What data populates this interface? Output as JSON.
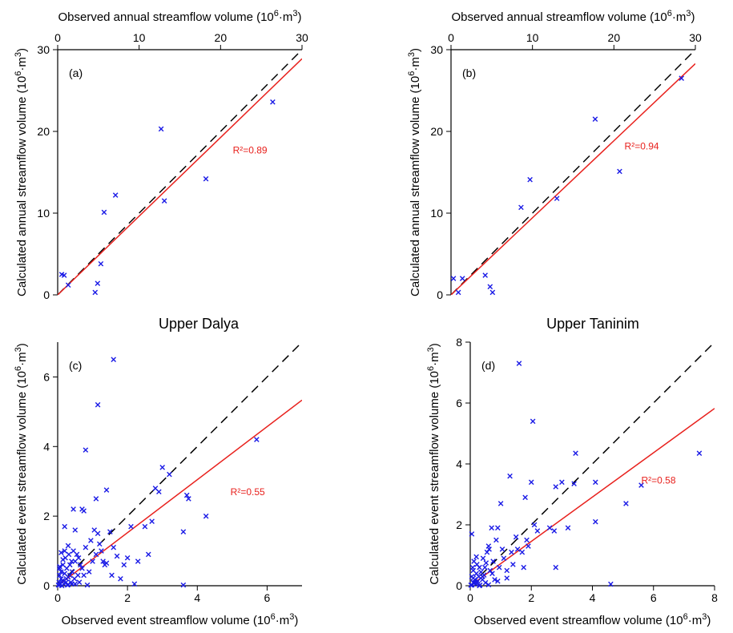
{
  "headings": {
    "left": "Upper Dalya",
    "right": "Upper Taninim"
  },
  "colors": {
    "points": "#1a1ae6",
    "fit_line": "#e8211d",
    "one_to_one": "#000000"
  },
  "chart_data": [
    {
      "type": "scatter",
      "panel_label": "(a)",
      "xlabel": "Observed annual streamflow volume (10",
      "xlabel_sup": "6",
      "xlabel_end": "·m",
      "xlabel_sup2": "3",
      "xlabel_close": ")",
      "ylabel": "Calculated annual streamflow volume (10",
      "ylabel_sup": "6",
      "ylabel_end": "·m",
      "ylabel_sup2": "3",
      "ylabel_close": ")",
      "x_axis_position": "top",
      "xlim": [
        0,
        30
      ],
      "ylim": [
        0,
        30
      ],
      "xticks": [
        0,
        10,
        20,
        30
      ],
      "yticks": [
        0,
        10,
        20,
        30
      ],
      "r2_label": "R²=0.89",
      "r2_at": [
        21.5,
        17.3
      ],
      "fit_slope": 0.963,
      "points": [
        [
          0.5,
          2.5
        ],
        [
          0.8,
          2.4
        ],
        [
          1.3,
          1.2
        ],
        [
          4.6,
          0.3
        ],
        [
          4.9,
          1.4
        ],
        [
          5.3,
          3.8
        ],
        [
          5.7,
          10.1
        ],
        [
          7.1,
          12.2
        ],
        [
          12.7,
          20.3
        ],
        [
          13.1,
          11.5
        ],
        [
          18.2,
          14.2
        ],
        [
          26.4,
          23.6
        ]
      ]
    },
    {
      "type": "scatter",
      "panel_label": "(b)",
      "xlabel": "Observed annual streamflow volume (10",
      "xlabel_sup": "6",
      "xlabel_end": "·m",
      "xlabel_sup2": "3",
      "xlabel_close": ")",
      "ylabel": "Calculated annual streamflow volume (10",
      "ylabel_sup": "6",
      "ylabel_end": "·m",
      "ylabel_sup2": "3",
      "ylabel_close": ")",
      "x_axis_position": "top",
      "xlim": [
        0,
        30
      ],
      "ylim": [
        0,
        30
      ],
      "xticks": [
        0,
        10,
        20,
        30
      ],
      "yticks": [
        0,
        10,
        20,
        30
      ],
      "r2_label": "R²=0.94",
      "r2_at": [
        21.3,
        17.8
      ],
      "fit_slope": 0.943,
      "points": [
        [
          0.3,
          2.0
        ],
        [
          0.9,
          0.3
        ],
        [
          1.4,
          2.0
        ],
        [
          4.2,
          2.4
        ],
        [
          4.8,
          1.0
        ],
        [
          5.1,
          0.3
        ],
        [
          8.6,
          10.7
        ],
        [
          9.7,
          14.1
        ],
        [
          13.0,
          11.8
        ],
        [
          17.7,
          21.5
        ],
        [
          20.7,
          15.1
        ],
        [
          28.3,
          26.5
        ]
      ]
    },
    {
      "type": "scatter",
      "panel_label": "(c)",
      "xlabel": "Observed event streamflow volume (10",
      "xlabel_sup": "6",
      "xlabel_end": "·m",
      "xlabel_sup2": "3",
      "xlabel_close": ")",
      "ylabel": "Calculated event streamflow volume (10",
      "ylabel_sup": "6",
      "ylabel_end": "·m",
      "ylabel_sup2": "3",
      "ylabel_close": ")",
      "x_axis_position": "bottom",
      "xlim": [
        0,
        7
      ],
      "ylim": [
        0,
        7
      ],
      "xticks": [
        0,
        2,
        4,
        6
      ],
      "yticks": [
        0,
        2,
        4,
        6
      ],
      "r2_label": "R²=0.55",
      "r2_at": [
        4.95,
        2.6
      ],
      "fit_slope": 0.762,
      "points": [
        [
          0.02,
          0.02
        ],
        [
          0.04,
          0.1
        ],
        [
          0.05,
          0.3
        ],
        [
          0.06,
          0.55
        ],
        [
          0.08,
          0.05
        ],
        [
          0.1,
          0.2
        ],
        [
          0.1,
          0.4
        ],
        [
          0.12,
          0.0
        ],
        [
          0.14,
          0.15
        ],
        [
          0.15,
          0.6
        ],
        [
          0.18,
          0.05
        ],
        [
          0.2,
          0.35
        ],
        [
          0.22,
          0.8
        ],
        [
          0.24,
          0.1
        ],
        [
          0.26,
          0.5
        ],
        [
          0.28,
          0.02
        ],
        [
          0.3,
          0.25
        ],
        [
          0.32,
          0.9
        ],
        [
          0.35,
          0.6
        ],
        [
          0.38,
          0.1
        ],
        [
          0.4,
          0.05
        ],
        [
          0.42,
          0.4
        ],
        [
          0.45,
          1.0
        ],
        [
          0.48,
          0.2
        ],
        [
          0.5,
          0.7
        ],
        [
          0.55,
          0.9
        ],
        [
          0.58,
          0.3
        ],
        [
          0.6,
          0.8
        ],
        [
          0.62,
          0.1
        ],
        [
          0.1,
          0.95
        ],
        [
          0.2,
          1.0
        ],
        [
          0.3,
          1.15
        ],
        [
          0.15,
          0.75
        ],
        [
          0.05,
          0.5
        ],
        [
          0.25,
          0.2
        ],
        [
          0.35,
          0.3
        ],
        [
          0.4,
          0.7
        ],
        [
          0.65,
          0.6
        ],
        [
          0.7,
          0.5
        ],
        [
          0.75,
          0.3
        ],
        [
          0.8,
          1.1
        ],
        [
          0.9,
          0.4
        ],
        [
          0.95,
          1.3
        ],
        [
          1.0,
          0.7
        ],
        [
          1.05,
          1.6
        ],
        [
          1.1,
          0.9
        ],
        [
          1.15,
          1.5
        ],
        [
          1.2,
          1.2
        ],
        [
          1.25,
          1.0
        ],
        [
          1.3,
          0.7
        ],
        [
          1.35,
          0.6
        ],
        [
          1.4,
          0.65
        ],
        [
          1.5,
          1.55
        ],
        [
          1.55,
          0.3
        ],
        [
          1.6,
          1.1
        ],
        [
          1.7,
          0.85
        ],
        [
          1.8,
          0.2
        ],
        [
          1.9,
          0.6
        ],
        [
          2.0,
          0.8
        ],
        [
          2.1,
          1.7
        ],
        [
          2.2,
          0.05
        ],
        [
          2.3,
          0.7
        ],
        [
          2.5,
          1.7
        ],
        [
          2.6,
          0.9
        ],
        [
          2.7,
          1.85
        ],
        [
          2.8,
          2.8
        ],
        [
          2.9,
          2.7
        ],
        [
          3.0,
          3.4
        ],
        [
          3.2,
          3.2
        ],
        [
          3.6,
          1.55
        ],
        [
          3.7,
          2.6
        ],
        [
          3.75,
          2.5
        ],
        [
          4.25,
          2.0
        ],
        [
          5.7,
          4.2
        ],
        [
          0.2,
          1.7
        ],
        [
          0.45,
          2.2
        ],
        [
          0.7,
          2.2
        ],
        [
          0.75,
          2.15
        ],
        [
          0.8,
          3.9
        ],
        [
          1.15,
          5.2
        ],
        [
          1.6,
          6.5
        ],
        [
          1.4,
          2.75
        ],
        [
          1.1,
          2.5
        ],
        [
          3.6,
          0.02
        ],
        [
          0.5,
          1.6
        ],
        [
          0.85,
          0.02
        ],
        [
          0.05,
          0.02
        ],
        [
          0.3,
          0.03
        ],
        [
          0.5,
          0.05
        ]
      ]
    },
    {
      "type": "scatter",
      "panel_label": "(d)",
      "xlabel": "Observed event streamflow volume (10",
      "xlabel_sup": "6",
      "xlabel_end": "·m",
      "xlabel_sup2": "3",
      "xlabel_close": ")",
      "ylabel": "Calculated event streamflow volume (10",
      "ylabel_sup": "6",
      "ylabel_end": "·m",
      "ylabel_sup2": "3",
      "ylabel_close": ")",
      "x_axis_position": "bottom",
      "xlim": [
        0,
        8
      ],
      "ylim": [
        0,
        8
      ],
      "xticks": [
        0,
        2,
        4,
        6,
        8
      ],
      "yticks": [
        0,
        2,
        4,
        6,
        8
      ],
      "r2_label": "R²=0.58",
      "r2_at": [
        5.6,
        3.35
      ],
      "fit_slope": 0.728,
      "points": [
        [
          0.02,
          0.02
        ],
        [
          0.05,
          0.3
        ],
        [
          0.05,
          1.7
        ],
        [
          0.08,
          0.6
        ],
        [
          0.1,
          0.1
        ],
        [
          0.1,
          0.5
        ],
        [
          0.12,
          0.8
        ],
        [
          0.15,
          0.2
        ],
        [
          0.18,
          0.05
        ],
        [
          0.2,
          0.4
        ],
        [
          0.22,
          0.7
        ],
        [
          0.25,
          0.15
        ],
        [
          0.28,
          0.3
        ],
        [
          0.3,
          0.6
        ],
        [
          0.32,
          0.02
        ],
        [
          0.35,
          0.45
        ],
        [
          0.4,
          0.2
        ],
        [
          0.42,
          0.9
        ],
        [
          0.45,
          0.35
        ],
        [
          0.48,
          0.6
        ],
        [
          0.5,
          0.1
        ],
        [
          0.52,
          0.75
        ],
        [
          0.55,
          1.1
        ],
        [
          0.6,
          1.3
        ],
        [
          0.62,
          1.2
        ],
        [
          0.65,
          0.5
        ],
        [
          0.7,
          1.9
        ],
        [
          0.72,
          0.4
        ],
        [
          0.75,
          0.8
        ],
        [
          0.8,
          0.2
        ],
        [
          0.85,
          1.5
        ],
        [
          0.9,
          1.9
        ],
        [
          0.95,
          0.6
        ],
        [
          1.0,
          2.7
        ],
        [
          1.05,
          1.2
        ],
        [
          1.1,
          0.9
        ],
        [
          1.2,
          0.5
        ],
        [
          1.3,
          3.6
        ],
        [
          1.35,
          1.1
        ],
        [
          1.4,
          0.7
        ],
        [
          1.5,
          1.6
        ],
        [
          1.55,
          1.2
        ],
        [
          1.6,
          7.3
        ],
        [
          1.7,
          1.1
        ],
        [
          1.75,
          0.6
        ],
        [
          1.8,
          2.9
        ],
        [
          1.85,
          1.5
        ],
        [
          1.9,
          1.3
        ],
        [
          2.0,
          3.4
        ],
        [
          2.05,
          5.4
        ],
        [
          2.1,
          2.0
        ],
        [
          2.2,
          1.8
        ],
        [
          2.6,
          1.9
        ],
        [
          2.75,
          1.8
        ],
        [
          2.8,
          0.6
        ],
        [
          2.8,
          3.25
        ],
        [
          3.0,
          3.4
        ],
        [
          3.2,
          1.9
        ],
        [
          3.4,
          3.35
        ],
        [
          3.45,
          4.35
        ],
        [
          4.1,
          3.4
        ],
        [
          4.1,
          2.1
        ],
        [
          4.6,
          0.05
        ],
        [
          5.1,
          2.7
        ],
        [
          5.6,
          3.3
        ],
        [
          7.5,
          4.35
        ],
        [
          0.05,
          0.02
        ],
        [
          0.15,
          0.1
        ],
        [
          0.3,
          0.0
        ],
        [
          0.6,
          0.03
        ],
        [
          0.2,
          0.95
        ],
        [
          0.4,
          0.3
        ],
        [
          0.1,
          0.25
        ],
        [
          0.9,
          0.15
        ],
        [
          1.2,
          0.25
        ]
      ]
    }
  ]
}
